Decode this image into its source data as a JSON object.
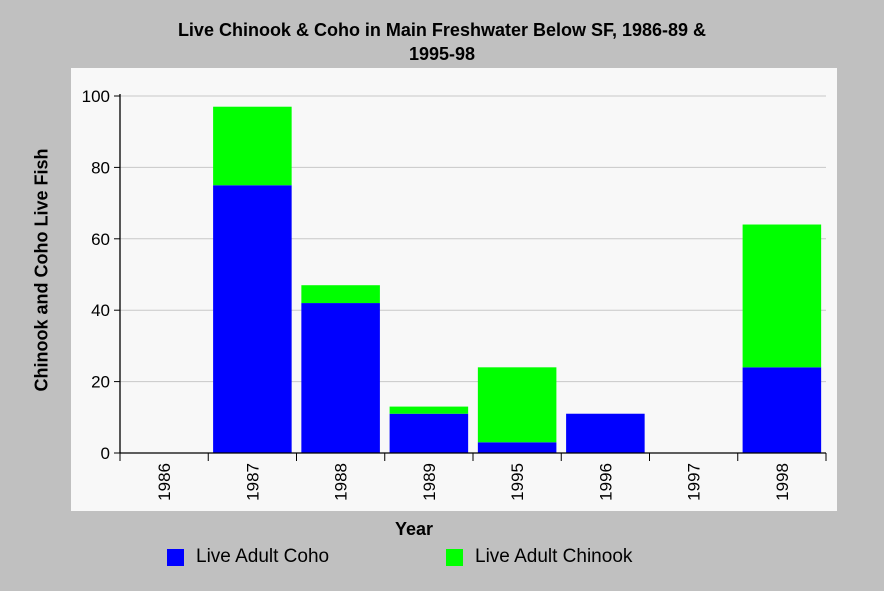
{
  "chart_data": {
    "type": "bar",
    "stacked": true,
    "title": "Live Chinook & Coho in Main Freshwater Below SF, 1986-89 & 1995-98",
    "title_lines": [
      "Live Chinook & Coho in Main Freshwater Below SF, 1986-89 &",
      "1995-98"
    ],
    "xlabel": "Year",
    "ylabel": "Chinook and Coho Live Fish",
    "categories": [
      "1986",
      "1987",
      "1988",
      "1989",
      "1995",
      "1996",
      "1997",
      "1998"
    ],
    "series": [
      {
        "name": "Live Adult Coho",
        "color": "#0000ff",
        "values": [
          0,
          75,
          42,
          11,
          3,
          11,
          0,
          24
        ]
      },
      {
        "name": "Live Adult Chinook",
        "color": "#00ff00",
        "values": [
          0,
          22,
          5,
          2,
          21,
          0,
          0,
          40
        ]
      }
    ],
    "ylim": [
      0,
      100
    ],
    "yticks": [
      0,
      20,
      40,
      60,
      80,
      100
    ],
    "grid": "horizontal",
    "legend_position": "bottom"
  }
}
